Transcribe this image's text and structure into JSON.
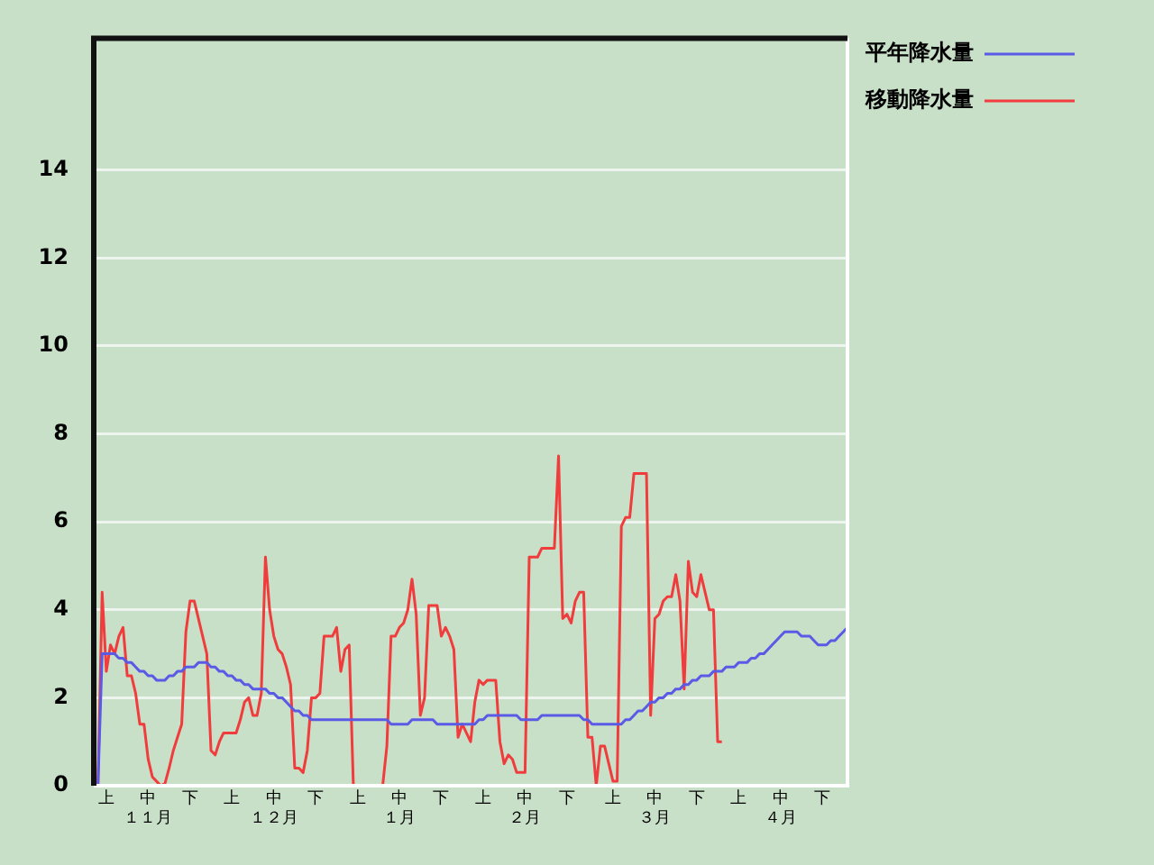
{
  "chart_data": {
    "type": "line",
    "ylim": [
      0,
      17
    ],
    "categories": [
      null,
      null,
      null,
      "上",
      null,
      null,
      null,
      null,
      null,
      null,
      null,
      null,
      null,
      "中１１月",
      null,
      null,
      null,
      null,
      null,
      null,
      null,
      null,
      null,
      "下",
      null,
      null,
      null,
      null,
      null,
      null,
      null,
      null,
      null,
      "上",
      null,
      null,
      null,
      null,
      null,
      null,
      null,
      null,
      null,
      "中１２月",
      null,
      null,
      null,
      null,
      null,
      null,
      null,
      null,
      null,
      "下",
      null,
      null,
      null,
      null,
      null,
      null,
      null,
      null,
      null,
      "上",
      null,
      null,
      null,
      null,
      null,
      null,
      null,
      null,
      null,
      "中１月",
      null,
      null,
      null,
      null,
      null,
      null,
      null,
      null,
      null,
      "下",
      null,
      null,
      null,
      null,
      null,
      null,
      null,
      null,
      null,
      "上",
      null,
      null,
      null,
      null,
      null,
      null,
      null,
      null,
      null,
      "中２月",
      null,
      null,
      null,
      null,
      null,
      null,
      null,
      null,
      null,
      "下",
      null,
      null,
      null,
      null,
      null,
      null,
      null,
      null,
      null,
      null,
      "上",
      null,
      null,
      null,
      null,
      null,
      null,
      null,
      null,
      null,
      "中３月",
      null,
      null,
      null,
      null,
      null,
      null,
      null,
      null,
      null,
      "下",
      null,
      null,
      null,
      null,
      null,
      null,
      null,
      null,
      null,
      "上",
      null,
      null,
      null,
      null,
      null,
      null,
      null,
      null,
      null,
      "中４月",
      null,
      null,
      null,
      null,
      null,
      null,
      null,
      null,
      null,
      "下",
      null,
      null,
      null,
      null,
      null,
      null
    ],
    "yticks": [
      0,
      2,
      4,
      6,
      8,
      10,
      12,
      14
    ],
    "grid": "y",
    "legend": "top right",
    "marker": "none",
    "line_style": "solid",
    "series": [
      {
        "name": "平年降水量",
        "color": "#5a5ae6",
        "values": [
          null,
          0,
          3.0,
          3.0,
          3.0,
          3.0,
          2.9,
          2.9,
          2.8,
          2.8,
          2.7,
          2.6,
          2.6,
          2.5,
          2.5,
          2.4,
          2.4,
          2.4,
          2.5,
          2.5,
          2.6,
          2.6,
          2.7,
          2.7,
          2.7,
          2.8,
          2.8,
          2.8,
          2.7,
          2.7,
          2.6,
          2.6,
          2.5,
          2.5,
          2.4,
          2.4,
          2.3,
          2.3,
          2.2,
          2.2,
          2.2,
          2.2,
          2.1,
          2.1,
          2.0,
          2.0,
          1.9,
          1.8,
          1.7,
          1.7,
          1.6,
          1.6,
          1.5,
          1.5,
          1.5,
          1.5,
          1.5,
          1.5,
          1.5,
          1.5,
          1.5,
          1.5,
          1.5,
          1.5,
          1.5,
          1.5,
          1.5,
          1.5,
          1.5,
          1.5,
          1.5,
          1.4,
          1.4,
          1.4,
          1.4,
          1.4,
          1.5,
          1.5,
          1.5,
          1.5,
          1.5,
          1.5,
          1.4,
          1.4,
          1.4,
          1.4,
          1.4,
          1.4,
          1.4,
          1.4,
          1.4,
          1.4,
          1.5,
          1.5,
          1.6,
          1.6,
          1.6,
          1.6,
          1.6,
          1.6,
          1.6,
          1.6,
          1.5,
          1.5,
          1.5,
          1.5,
          1.5,
          1.6,
          1.6,
          1.6,
          1.6,
          1.6,
          1.6,
          1.6,
          1.6,
          1.6,
          1.6,
          1.5,
          1.5,
          1.4,
          1.4,
          1.4,
          1.4,
          1.4,
          1.4,
          1.4,
          1.4,
          1.5,
          1.5,
          1.6,
          1.7,
          1.7,
          1.8,
          1.9,
          1.9,
          2.0,
          2.0,
          2.1,
          2.1,
          2.2,
          2.2,
          2.3,
          2.3,
          2.4,
          2.4,
          2.5,
          2.5,
          2.5,
          2.6,
          2.6,
          2.6,
          2.7,
          2.7,
          2.7,
          2.8,
          2.8,
          2.8,
          2.9,
          2.9,
          3.0,
          3.0,
          3.1,
          3.2,
          3.3,
          3.4,
          3.5,
          3.5,
          3.5,
          3.5,
          3.4,
          3.4,
          3.4,
          3.3,
          3.2,
          3.2,
          3.2,
          3.3,
          3.3,
          3.4,
          3.5,
          3.6
        ]
      },
      {
        "name": "移動降水量",
        "color": "#f03c3c",
        "values": [
          null,
          0,
          4.4,
          2.6,
          3.2,
          3.0,
          3.4,
          3.6,
          2.5,
          2.5,
          2.1,
          1.4,
          1.4,
          0.6,
          0.2,
          0.1,
          0,
          0.05,
          0.4,
          0.8,
          1.1,
          1.4,
          3.5,
          4.2,
          4.2,
          3.8,
          3.4,
          3.0,
          0.8,
          0.7,
          1.0,
          1.2,
          1.2,
          1.2,
          1.2,
          1.5,
          1.9,
          2.0,
          1.6,
          1.6,
          2.1,
          5.2,
          4.0,
          3.4,
          3.1,
          3.0,
          2.7,
          2.3,
          0.4,
          0.4,
          0.3,
          0.8,
          2.0,
          2.0,
          2.1,
          3.4,
          3.4,
          3.4,
          3.6,
          2.6,
          3.1,
          3.2,
          0,
          0,
          0,
          0,
          0,
          0,
          0,
          0,
          0.9,
          3.4,
          3.4,
          3.6,
          3.7,
          4.0,
          4.7,
          3.9,
          1.6,
          2.0,
          4.1,
          4.1,
          4.1,
          3.4,
          3.6,
          3.4,
          3.1,
          1.1,
          1.4,
          1.2,
          1.0,
          1.9,
          2.4,
          2.3,
          2.4,
          2.4,
          2.4,
          1.0,
          0.5,
          0.7,
          0.6,
          0.3,
          0.3,
          0.3,
          5.2,
          5.2,
          5.2,
          5.4,
          5.4,
          5.4,
          5.4,
          7.5,
          3.8,
          3.9,
          3.7,
          4.2,
          4.4,
          4.4,
          1.1,
          1.1,
          0,
          0.9,
          0.9,
          0.5,
          0.1,
          0.1,
          5.9,
          6.1,
          6.1,
          7.1,
          7.1,
          7.1,
          7.1,
          1.6,
          3.8,
          3.9,
          4.2,
          4.3,
          4.3,
          4.8,
          4.2,
          2.2,
          5.1,
          4.4,
          4.3,
          4.8,
          4.4,
          4.0,
          4.0,
          1.0,
          1.0,
          null,
          null,
          null,
          null,
          null,
          null,
          null,
          null,
          null,
          null,
          null,
          null,
          null,
          null,
          null,
          null,
          null,
          null,
          null,
          null,
          null,
          null,
          null,
          null,
          null,
          null,
          null,
          null,
          null,
          null
        ]
      }
    ]
  }
}
